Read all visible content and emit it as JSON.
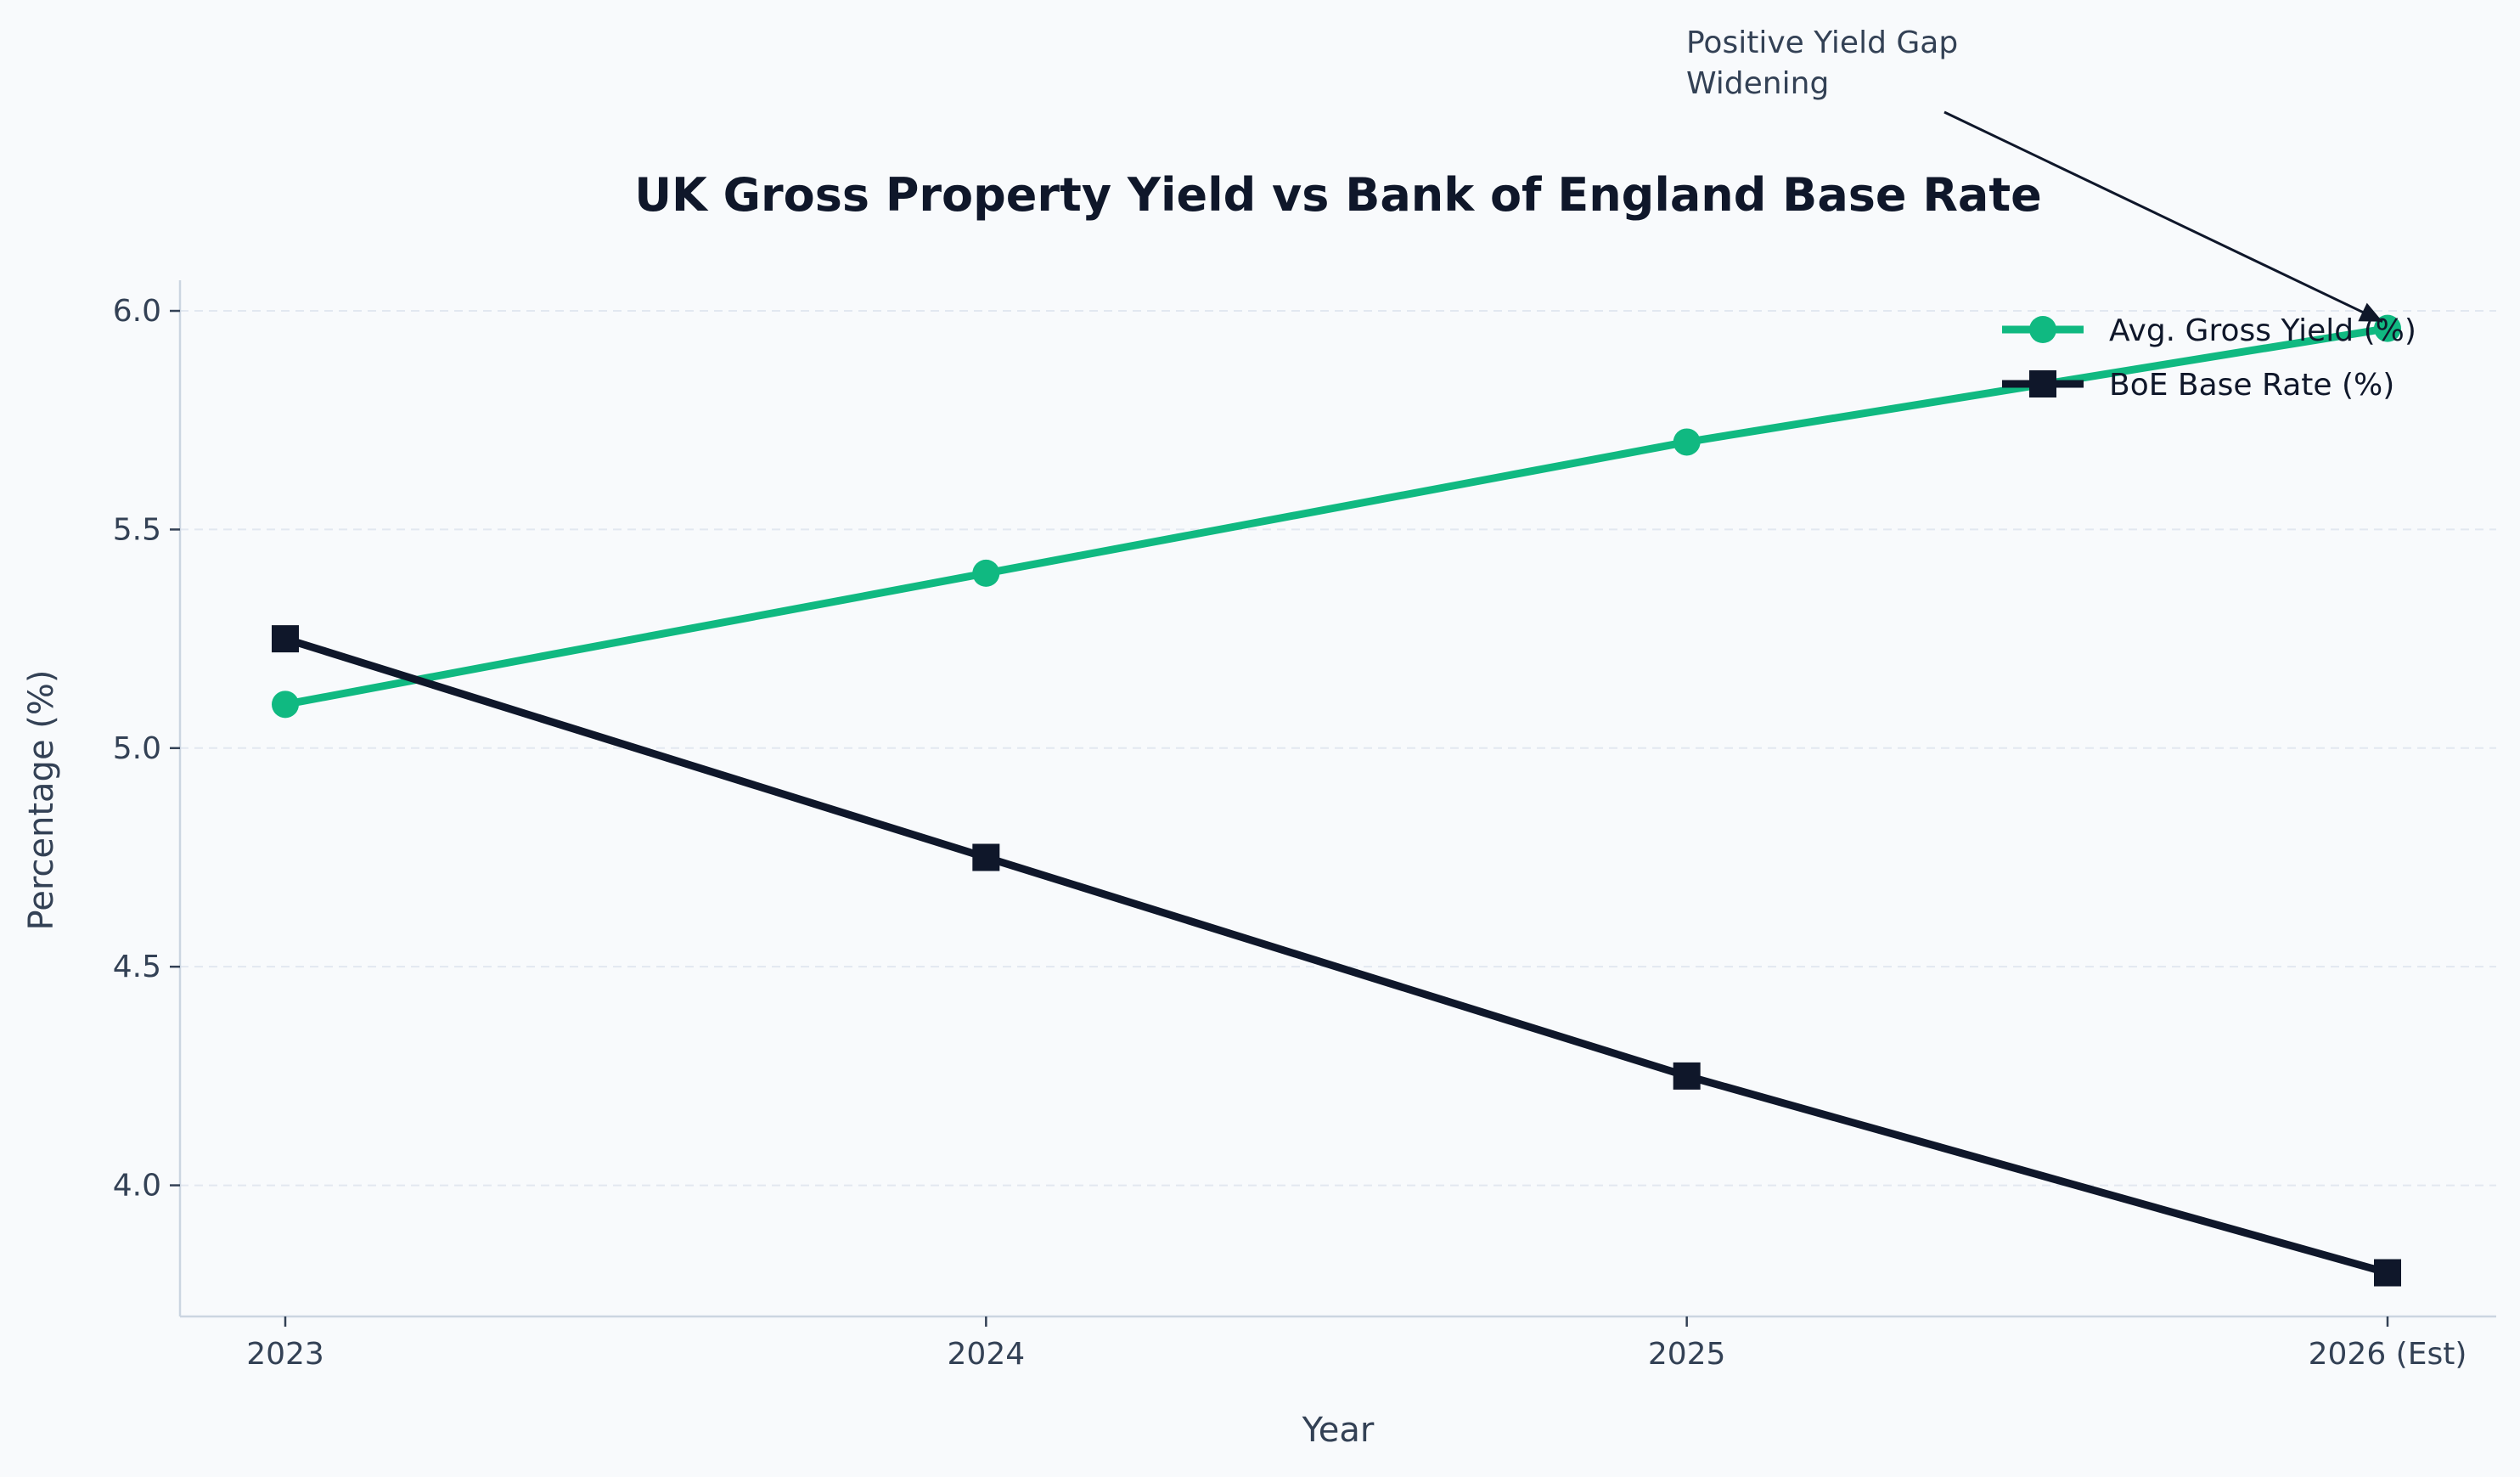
{
  "chart_data": {
    "type": "line",
    "title": "UK Gross Property Yield vs Bank of England Base Rate",
    "xlabel": "Year",
    "ylabel": "Percentage (%)",
    "categories": [
      "2023",
      "2024",
      "2025",
      "2026 (Est)"
    ],
    "ylim": [
      3.7,
      6.07
    ],
    "yticks": [
      4.0,
      4.5,
      5.0,
      5.5,
      6.0
    ],
    "ytick_labels": [
      "4.0",
      "4.5",
      "5.0",
      "5.5",
      "6.0"
    ],
    "grid": "horizontal dashed",
    "legend_position": "top-right",
    "series": [
      {
        "name": "Avg. Gross Yield (%)",
        "values": [
          5.1,
          5.4,
          5.7,
          5.96
        ],
        "color": "#10b981",
        "marker": "circle"
      },
      {
        "name": "BoE Base Rate (%)",
        "values": [
          5.25,
          4.75,
          4.25,
          3.8
        ],
        "color": "#0f172a",
        "marker": "square"
      }
    ],
    "annotation": {
      "lines": [
        "Positive Yield Gap",
        "Widening"
      ],
      "target_category": "2026 (Est)",
      "target_value": 5.96
    }
  }
}
